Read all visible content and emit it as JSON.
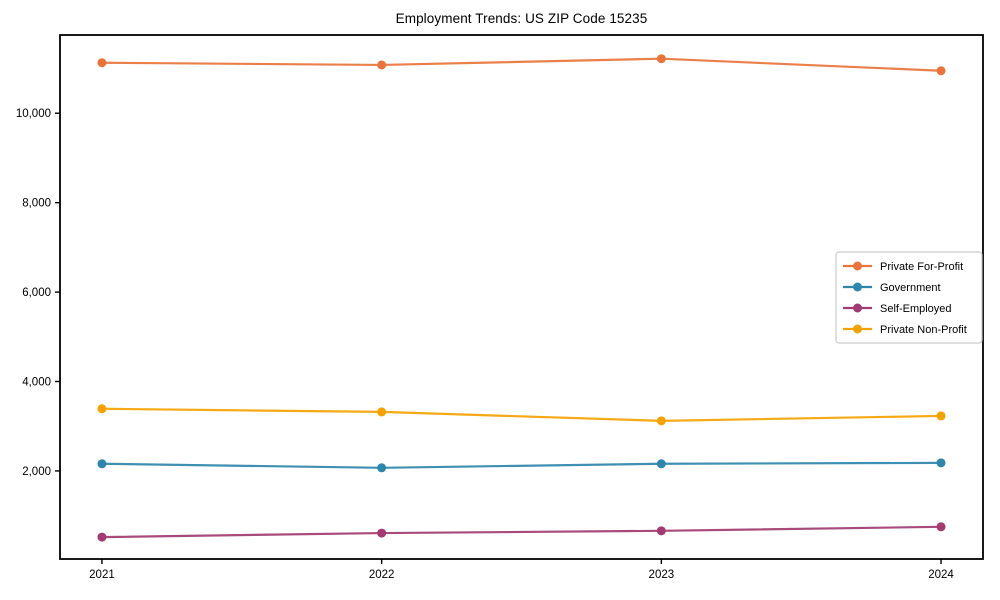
{
  "chart_data": {
    "type": "line",
    "title": "Employment Trends: US ZIP Code 15235",
    "x": [
      2021,
      2022,
      2023,
      2024
    ],
    "x_tick_labels": [
      "2021",
      "2022",
      "2023",
      "2024"
    ],
    "series": [
      {
        "name": "Private For-Profit",
        "color": "#E8743B",
        "values": [
          11130,
          11080,
          11220,
          10950
        ]
      },
      {
        "name": "Government",
        "color": "#2E86AB",
        "values": [
          2160,
          2070,
          2160,
          2180
        ]
      },
      {
        "name": "Self-Employed",
        "color": "#A23B72",
        "values": [
          520,
          610,
          660,
          750
        ]
      },
      {
        "name": "Private Non-Profit",
        "color": "#F5A201",
        "values": [
          3390,
          3320,
          3120,
          3230
        ]
      }
    ],
    "y_ticks": [
      {
        "value": 2000,
        "label": "2,000"
      },
      {
        "value": 4000,
        "label": "4,000"
      },
      {
        "value": 6000,
        "label": "6,000"
      },
      {
        "value": 8000,
        "label": "8,000"
      },
      {
        "value": 10000,
        "label": "10,000"
      }
    ],
    "xlim": [
      2020.85,
      2024.15
    ],
    "ylim": [
      30,
      11750
    ],
    "grid": false,
    "legend_position": "center-right",
    "axis_color": "#000000",
    "background_color": "#ffffff"
  }
}
